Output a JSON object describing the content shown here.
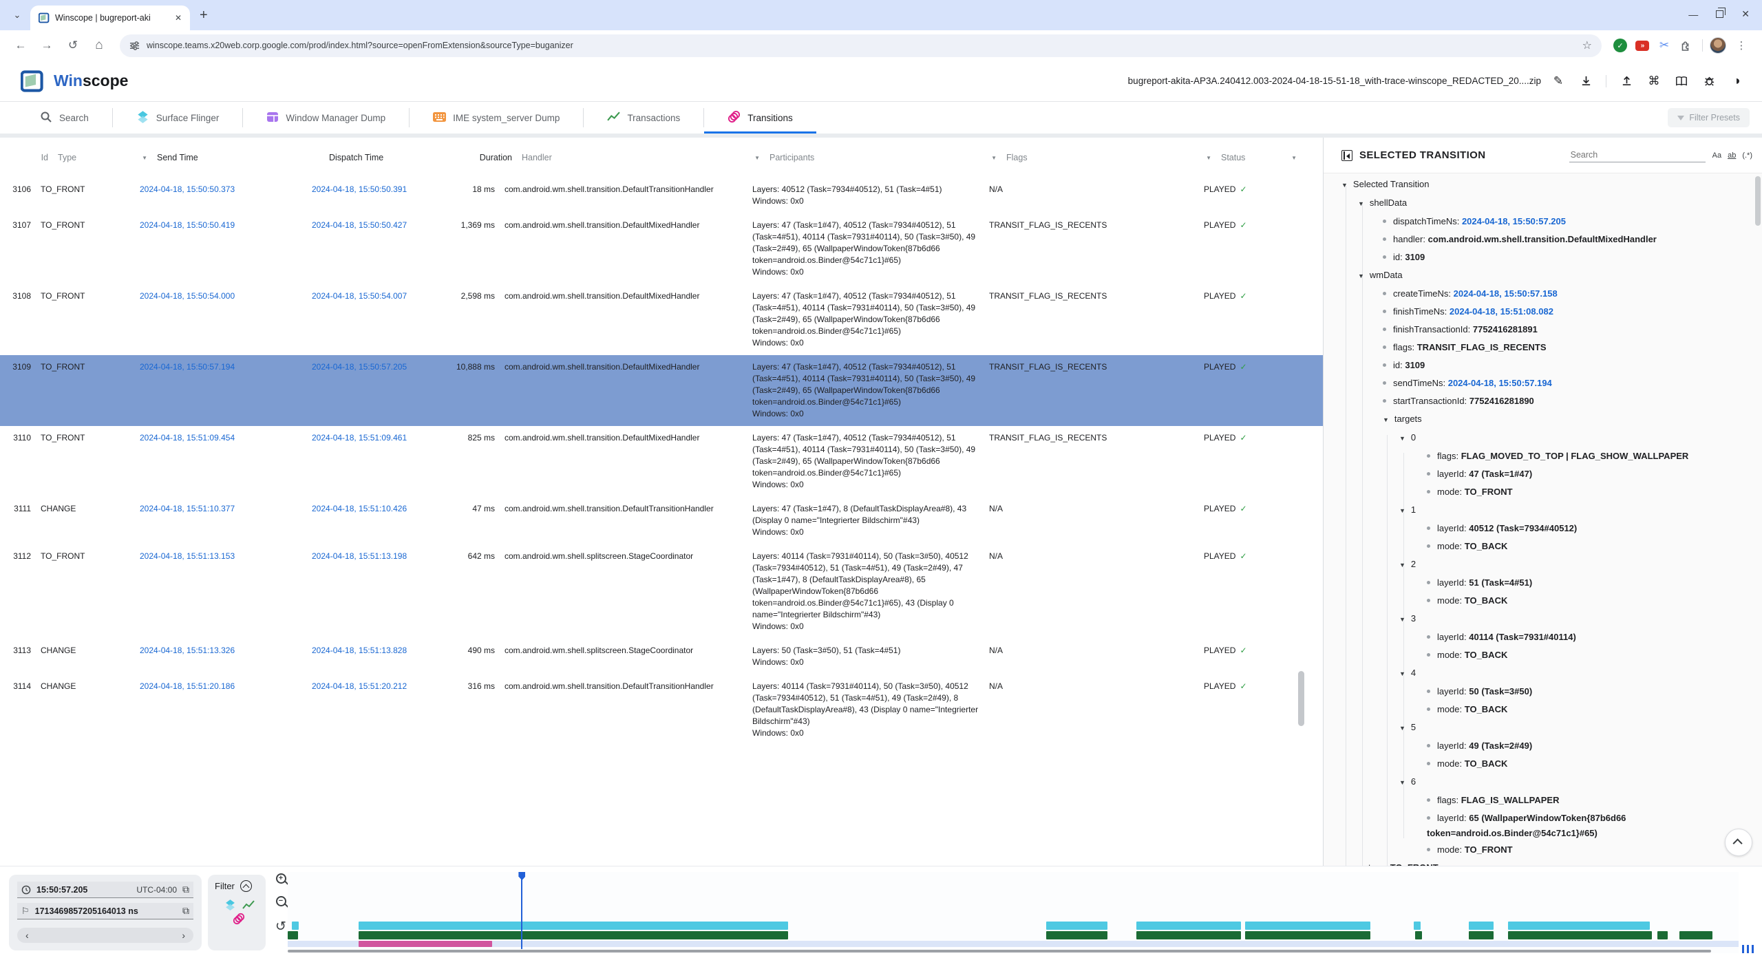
{
  "palette": {
    "accent": "#1a73e8",
    "link_blue": "#1967d2",
    "selected_row": "#7d9cd1",
    "check_green": "#2f9e44",
    "sf_cyan": "#4ec9e2",
    "txn_green": "#1b6b35",
    "transition_magenta": "#d1559e",
    "transitions_band": "#dbe5f8"
  },
  "browser": {
    "tab_title": "Winscope | bugreport-aki",
    "url": "winscope.teams.x20web.corp.google.com/prod/index.html?source=openFromExtension&sourceType=buganizer",
    "extension_badge": "»"
  },
  "header": {
    "title_part1": "Win",
    "title_part2": "scope",
    "filename": "bugreport-akita-AP3A.240412.003-2024-04-18-15-51-18_with-trace-winscope_REDACTED_20....zip"
  },
  "tracebar": {
    "tabs": [
      {
        "label": "Search",
        "icon": "search",
        "active": false
      },
      {
        "label": "Surface Flinger",
        "icon": "layers",
        "active": false
      },
      {
        "label": "Window Manager Dump",
        "icon": "window",
        "active": false
      },
      {
        "label": "IME system_server Dump",
        "icon": "keyboard",
        "active": false
      },
      {
        "label": "Transactions",
        "icon": "chart",
        "active": false
      },
      {
        "label": "Transitions",
        "icon": "rings",
        "active": true
      }
    ],
    "filter_presets_label": "Filter Presets"
  },
  "table": {
    "columns": [
      {
        "label": "Id",
        "align": "right"
      },
      {
        "label": "Type",
        "filter": true
      },
      {
        "label": "Send Time",
        "emph": true
      },
      {
        "label": "Dispatch Time",
        "emph": true
      },
      {
        "label": "Duration",
        "emph": true,
        "align": "right"
      },
      {
        "label": "Handler",
        "filter": true
      },
      {
        "label": "Participants",
        "filter": true
      },
      {
        "label": "Flags",
        "filter": true
      },
      {
        "label": "Status",
        "filter": true
      }
    ],
    "rows": [
      {
        "id": "3106",
        "type": "TO_FRONT",
        "send": "2024-04-18, 15:50:50.373",
        "dispatch": "2024-04-18, 15:50:50.391",
        "duration": "18 ms",
        "handler": "com.android.wm.shell.transition.DefaultTransitionHandler",
        "layers": "Layers: 40512 (Task=7934#40512), 51 (Task=4#51)",
        "windows": "Windows: 0x0",
        "flags": "N/A",
        "status": "PLAYED",
        "selected": false
      },
      {
        "id": "3107",
        "type": "TO_FRONT",
        "send": "2024-04-18, 15:50:50.419",
        "dispatch": "2024-04-18, 15:50:50.427",
        "duration": "1,369 ms",
        "handler": "com.android.wm.shell.transition.DefaultMixedHandler",
        "layers": "Layers: 47 (Task=1#47), 40512 (Task=7934#40512), 51 (Task=4#51), 40114 (Task=7931#40114), 50 (Task=3#50), 49 (Task=2#49), 65 (WallpaperWindowToken{87b6d66 token=android.os.Binder@54c71c1}#65)",
        "windows": "Windows: 0x0",
        "flags": "TRANSIT_FLAG_IS_RECENTS",
        "status": "PLAYED",
        "selected": false
      },
      {
        "id": "3108",
        "type": "TO_FRONT",
        "send": "2024-04-18, 15:50:54.000",
        "dispatch": "2024-04-18, 15:50:54.007",
        "duration": "2,598 ms",
        "handler": "com.android.wm.shell.transition.DefaultMixedHandler",
        "layers": "Layers: 47 (Task=1#47), 40512 (Task=7934#40512), 51 (Task=4#51), 40114 (Task=7931#40114), 50 (Task=3#50), 49 (Task=2#49), 65 (WallpaperWindowToken{87b6d66 token=android.os.Binder@54c71c1}#65)",
        "windows": "Windows: 0x0",
        "flags": "TRANSIT_FLAG_IS_RECENTS",
        "status": "PLAYED",
        "selected": false
      },
      {
        "id": "3109",
        "type": "TO_FRONT",
        "send": "2024-04-18, 15:50:57.194",
        "dispatch": "2024-04-18, 15:50:57.205",
        "duration": "10,888 ms",
        "handler": "com.android.wm.shell.transition.DefaultMixedHandler",
        "layers": "Layers: 47 (Task=1#47), 40512 (Task=7934#40512), 51 (Task=4#51), 40114 (Task=7931#40114), 50 (Task=3#50), 49 (Task=2#49), 65 (WallpaperWindowToken{87b6d66 token=android.os.Binder@54c71c1}#65)",
        "windows": "Windows: 0x0",
        "flags": "TRANSIT_FLAG_IS_RECENTS",
        "status": "PLAYED",
        "selected": true
      },
      {
        "id": "3110",
        "type": "TO_FRONT",
        "send": "2024-04-18, 15:51:09.454",
        "dispatch": "2024-04-18, 15:51:09.461",
        "duration": "825 ms",
        "handler": "com.android.wm.shell.transition.DefaultMixedHandler",
        "layers": "Layers: 47 (Task=1#47), 40512 (Task=7934#40512), 51 (Task=4#51), 40114 (Task=7931#40114), 50 (Task=3#50), 49 (Task=2#49), 65 (WallpaperWindowToken{87b6d66 token=android.os.Binder@54c71c1}#65)",
        "windows": "Windows: 0x0",
        "flags": "TRANSIT_FLAG_IS_RECENTS",
        "status": "PLAYED",
        "selected": false
      },
      {
        "id": "3111",
        "type": "CHANGE",
        "send": "2024-04-18, 15:51:10.377",
        "dispatch": "2024-04-18, 15:51:10.426",
        "duration": "47 ms",
        "handler": "com.android.wm.shell.transition.DefaultTransitionHandler",
        "layers": "Layers: 47 (Task=1#47), 8 (DefaultTaskDisplayArea#8), 43 (Display 0 name=\"Integrierter Bildschirm\"#43)",
        "windows": "Windows: 0x0",
        "flags": "N/A",
        "status": "PLAYED",
        "selected": false
      },
      {
        "id": "3112",
        "type": "TO_FRONT",
        "send": "2024-04-18, 15:51:13.153",
        "dispatch": "2024-04-18, 15:51:13.198",
        "duration": "642 ms",
        "handler": "com.android.wm.shell.splitscreen.StageCoordinator",
        "layers": "Layers: 40114 (Task=7931#40114), 50 (Task=3#50), 40512 (Task=7934#40512), 51 (Task=4#51), 49 (Task=2#49), 47 (Task=1#47), 8 (DefaultTaskDisplayArea#8), 65 (WallpaperWindowToken{87b6d66 token=android.os.Binder@54c71c1}#65), 43 (Display 0 name=\"Integrierter Bildschirm\"#43)",
        "windows": "Windows: 0x0",
        "flags": "N/A",
        "status": "PLAYED",
        "selected": false
      },
      {
        "id": "3113",
        "type": "CHANGE",
        "send": "2024-04-18, 15:51:13.326",
        "dispatch": "2024-04-18, 15:51:13.828",
        "duration": "490 ms",
        "handler": "com.android.wm.shell.splitscreen.StageCoordinator",
        "layers": "Layers: 50 (Task=3#50), 51 (Task=4#51)",
        "windows": "Windows: 0x0",
        "flags": "N/A",
        "status": "PLAYED",
        "selected": false
      },
      {
        "id": "3114",
        "type": "CHANGE",
        "send": "2024-04-18, 15:51:20.186",
        "dispatch": "2024-04-18, 15:51:20.212",
        "duration": "316 ms",
        "handler": "com.android.wm.shell.transition.DefaultTransitionHandler",
        "layers": "Layers: 40114 (Task=7931#40114), 50 (Task=3#50), 40512 (Task=7934#40512), 51 (Task=4#51), 49 (Task=2#49), 8 (DefaultTaskDisplayArea#8), 43 (Display 0 name=\"Integrierter Bildschirm\"#43)",
        "windows": "Windows: 0x0",
        "flags": "N/A",
        "status": "PLAYED",
        "selected": false
      }
    ]
  },
  "details": {
    "title": "SELECTED TRANSITION",
    "search_placeholder": "Search",
    "toggles": {
      "match_case": "Aa",
      "whole_word": "ab",
      "regex": "(.*)"
    },
    "tree": [
      {
        "lvl": 0,
        "node": "Selected Transition"
      },
      {
        "lvl": 1,
        "node": "shellData"
      },
      {
        "lvl": 2,
        "key": "dispatchTimeNs",
        "val": "2024-04-18, 15:50:57.205",
        "time": true
      },
      {
        "lvl": 2,
        "key": "handler",
        "val": "com.android.wm.shell.transition.DefaultMixedHandler"
      },
      {
        "lvl": 2,
        "key": "id",
        "val": "3109"
      },
      {
        "lvl": 1,
        "node": "wmData"
      },
      {
        "lvl": 2,
        "key": "createTimeNs",
        "val": "2024-04-18, 15:50:57.158",
        "time": true
      },
      {
        "lvl": 2,
        "key": "finishTimeNs",
        "val": "2024-04-18, 15:51:08.082",
        "time": true
      },
      {
        "lvl": 2,
        "key": "finishTransactionId",
        "val": "7752416281891"
      },
      {
        "lvl": 2,
        "key": "flags",
        "val": "TRANSIT_FLAG_IS_RECENTS"
      },
      {
        "lvl": 2,
        "key": "id",
        "val": "3109"
      },
      {
        "lvl": 2,
        "key": "sendTimeNs",
        "val": "2024-04-18, 15:50:57.194",
        "time": true
      },
      {
        "lvl": 2,
        "key": "startTransactionId",
        "val": "7752416281890"
      },
      {
        "lvl": 2,
        "node": "targets"
      },
      {
        "lvl": 3,
        "node": "0"
      },
      {
        "lvl": 4,
        "key": "flags",
        "val": "FLAG_MOVED_TO_TOP | FLAG_SHOW_WALLPAPER"
      },
      {
        "lvl": 4,
        "key": "layerId",
        "val": "47 (Task=1#47)"
      },
      {
        "lvl": 4,
        "key": "mode",
        "val": "TO_FRONT"
      },
      {
        "lvl": 3,
        "node": "1"
      },
      {
        "lvl": 4,
        "key": "layerId",
        "val": "40512 (Task=7934#40512)"
      },
      {
        "lvl": 4,
        "key": "mode",
        "val": "TO_BACK"
      },
      {
        "lvl": 3,
        "node": "2"
      },
      {
        "lvl": 4,
        "key": "layerId",
        "val": "51 (Task=4#51)"
      },
      {
        "lvl": 4,
        "key": "mode",
        "val": "TO_BACK"
      },
      {
        "lvl": 3,
        "node": "3"
      },
      {
        "lvl": 4,
        "key": "layerId",
        "val": "40114 (Task=7931#40114)"
      },
      {
        "lvl": 4,
        "key": "mode",
        "val": "TO_BACK"
      },
      {
        "lvl": 3,
        "node": "4"
      },
      {
        "lvl": 4,
        "key": "layerId",
        "val": "50 (Task=3#50)"
      },
      {
        "lvl": 4,
        "key": "mode",
        "val": "TO_BACK"
      },
      {
        "lvl": 3,
        "node": "5"
      },
      {
        "lvl": 4,
        "key": "layerId",
        "val": "49 (Task=2#49)"
      },
      {
        "lvl": 4,
        "key": "mode",
        "val": "TO_BACK"
      },
      {
        "lvl": 3,
        "node": "6"
      },
      {
        "lvl": 4,
        "key": "flags",
        "val": "FLAG_IS_WALLPAPER"
      },
      {
        "lvl": 4,
        "key": "layerId",
        "val": "65 (WallpaperWindowToken{87b6d66 token=android.os.Binder@54c71c1}#65)",
        "wrap": true
      },
      {
        "lvl": 4,
        "key": "mode",
        "val": "TO_FRONT"
      },
      {
        "lvl": 1,
        "key": "type",
        "val": "TO_FRONT"
      }
    ]
  },
  "timeline": {
    "current_time": "15:50:57.205",
    "timezone": "UTC-04:00",
    "current_ns": "1713469857205164013 ns",
    "filter_label": "Filter",
    "cursor_pct": 16.1,
    "tracks": {
      "surface_flinger": [
        [
          0.3,
          0.45
        ],
        [
          4.9,
          29.6
        ],
        [
          52.3,
          4.2
        ],
        [
          58.5,
          7.2
        ],
        [
          66.0,
          8.6
        ],
        [
          77.6,
          0.5
        ],
        [
          81.4,
          1.7
        ],
        [
          84.1,
          9.8
        ]
      ],
      "transactions": [
        [
          0,
          0.7
        ],
        [
          4.9,
          29.6
        ],
        [
          52.3,
          4.2
        ],
        [
          58.5,
          7.2
        ],
        [
          66.0,
          8.6
        ],
        [
          77.7,
          0.5
        ],
        [
          81.4,
          1.7
        ],
        [
          84.1,
          9.9
        ],
        [
          94.4,
          0.7
        ],
        [
          95.9,
          2.3
        ]
      ],
      "transitions": [
        [
          4.9,
          9.2
        ]
      ]
    }
  }
}
